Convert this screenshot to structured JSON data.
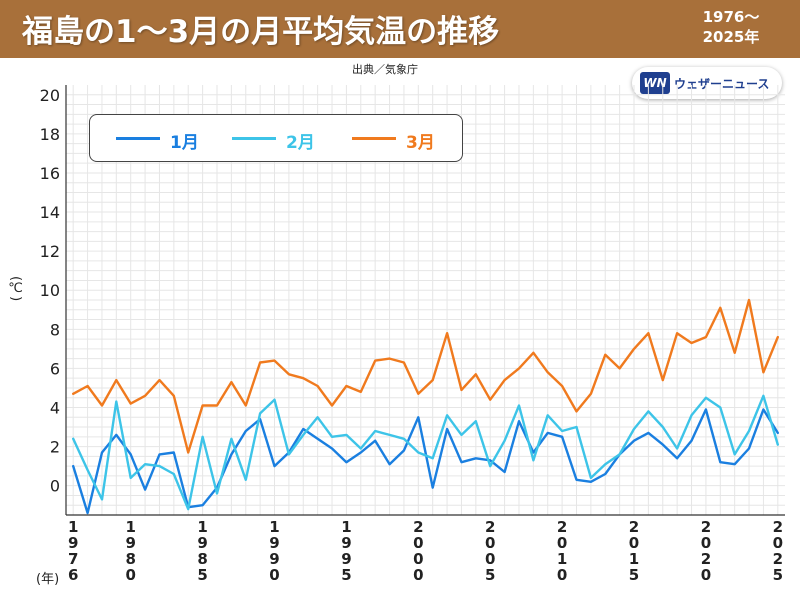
{
  "header": {
    "title": "福島の1〜3月の月平均気温の推移",
    "years": "1976〜\n2025年"
  },
  "source": "出典／気象庁",
  "logo": {
    "mark": "WN",
    "text": "ウェザーニュース"
  },
  "axis": {
    "unit": "(℃)",
    "year_unit": "(年)"
  },
  "colors": {
    "title_bg": "#a8703a",
    "jan": "#1a7fe0",
    "feb": "#3dc4e8",
    "mar": "#f07a1e"
  },
  "chart_data": {
    "type": "line",
    "title": "福島の1〜3月の月平均気温の推移",
    "xlabel": "(年)",
    "ylabel": "(℃)",
    "ylim": [
      -1.5,
      20.5
    ],
    "yticks": [
      0,
      2,
      4,
      6,
      8,
      10,
      12,
      14,
      16,
      18,
      20
    ],
    "grid": true,
    "legend_position": "top-left",
    "x": [
      1976,
      1977,
      1978,
      1979,
      1980,
      1981,
      1982,
      1983,
      1984,
      1985,
      1986,
      1987,
      1988,
      1989,
      1990,
      1991,
      1992,
      1993,
      1994,
      1995,
      1996,
      1997,
      1998,
      1999,
      2000,
      2001,
      2002,
      2003,
      2004,
      2005,
      2006,
      2007,
      2008,
      2009,
      2010,
      2011,
      2012,
      2013,
      2014,
      2015,
      2016,
      2017,
      2018,
      2019,
      2020,
      2021,
      2022,
      2023,
      2024,
      2025
    ],
    "xtick_labels": [
      "1976",
      "1980",
      "1985",
      "1990",
      "1995",
      "2000",
      "2005",
      "2010",
      "2015",
      "2020",
      "2025"
    ],
    "series": [
      {
        "name": "1月",
        "values": [
          1.0,
          -1.4,
          1.7,
          2.6,
          1.6,
          -0.2,
          1.6,
          1.7,
          -1.1,
          -1.0,
          -0.1,
          1.6,
          2.8,
          3.4,
          1.0,
          1.7,
          2.9,
          2.4,
          1.9,
          1.2,
          1.7,
          2.3,
          1.1,
          1.8,
          3.5,
          -0.1,
          2.9,
          1.2,
          1.4,
          1.3,
          0.7,
          3.3,
          1.7,
          2.7,
          2.5,
          0.3,
          0.2,
          0.6,
          1.6,
          2.3,
          2.7,
          2.1,
          1.4,
          2.3,
          3.9,
          1.2,
          1.1,
          1.9,
          3.9,
          2.7
        ]
      },
      {
        "name": "2月",
        "values": [
          2.4,
          0.8,
          -0.7,
          4.3,
          0.4,
          1.1,
          1.0,
          0.6,
          -1.2,
          2.5,
          -0.4,
          2.4,
          0.3,
          3.7,
          4.4,
          1.6,
          2.6,
          3.5,
          2.5,
          2.6,
          1.9,
          2.8,
          2.6,
          2.4,
          1.7,
          1.4,
          3.6,
          2.6,
          3.3,
          1.0,
          2.3,
          4.1,
          1.3,
          3.6,
          2.8,
          3.0,
          0.4,
          1.1,
          1.6,
          2.9,
          3.8,
          3.0,
          1.9,
          3.6,
          4.5,
          4.0,
          1.6,
          2.8,
          4.6,
          2.1
        ]
      },
      {
        "name": "3月",
        "values": [
          4.7,
          5.1,
          4.1,
          5.4,
          4.2,
          4.6,
          5.4,
          4.6,
          1.7,
          4.1,
          4.1,
          5.3,
          4.1,
          6.3,
          6.4,
          5.7,
          5.5,
          5.1,
          4.1,
          5.1,
          4.8,
          6.4,
          6.5,
          6.3,
          4.7,
          5.4,
          7.8,
          4.9,
          5.7,
          4.4,
          5.4,
          6.0,
          6.8,
          5.8,
          5.1,
          3.8,
          4.7,
          6.7,
          6.0,
          7.0,
          7.8,
          5.4,
          7.8,
          7.3,
          7.6,
          9.1,
          6.8,
          9.5,
          5.8,
          7.6
        ]
      }
    ]
  }
}
